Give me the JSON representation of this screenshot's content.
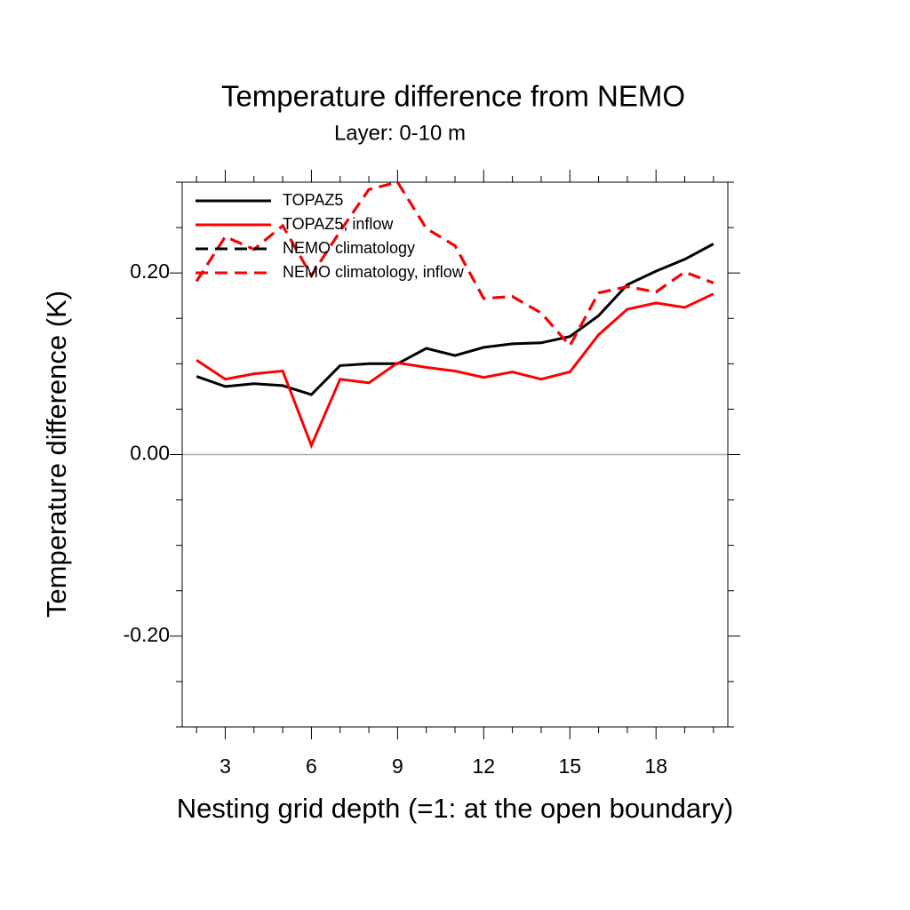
{
  "chart_data": {
    "type": "line",
    "title": "Temperature difference from NEMO",
    "subtitle": "Layer: 0-10 m",
    "x_label": "Nesting grid depth (=1: at the open boundary)",
    "y_label": "Temperature difference (K)",
    "x": [
      2,
      3,
      4,
      5,
      6,
      7,
      8,
      9,
      10,
      11,
      12,
      13,
      14,
      15,
      16,
      17,
      18,
      19,
      20
    ],
    "xlim": [
      1.5,
      20.5
    ],
    "xticks": [
      3,
      6,
      9,
      12,
      15,
      18
    ],
    "x_minor_ticks": [
      2,
      4,
      5,
      7,
      8,
      10,
      11,
      13,
      14,
      16,
      17,
      19,
      20
    ],
    "ylim": [
      -0.3,
      0.3
    ],
    "yticks": [
      {
        "value": -0.2,
        "label": "-0.20"
      },
      {
        "value": 0,
        "label": "0.00"
      },
      {
        "value": 0.2,
        "label": "0.20"
      }
    ],
    "y_minor_ticks": [
      -0.3,
      -0.25,
      -0.15,
      -0.1,
      -0.05,
      0.05,
      0.1,
      0.15,
      0.25,
      0.3
    ],
    "zero_line": true,
    "legend": "upper left",
    "series": [
      {
        "name": "TOPAZ5",
        "color": "#000000",
        "dash": false,
        "values": [
          0.086,
          0.075,
          0.078,
          0.076,
          0.066,
          0.098,
          0.1,
          0.1,
          0.117,
          0.109,
          0.118,
          0.122,
          0.123,
          0.13,
          0.153,
          0.187,
          0.202,
          0.215,
          0.232
        ]
      },
      {
        "name": "TOPAZ5, inflow",
        "color": "#ff0000",
        "dash": false,
        "values": [
          0.104,
          0.083,
          0.089,
          0.092,
          0.01,
          0.083,
          0.079,
          0.101,
          0.096,
          0.092,
          0.085,
          0.091,
          0.083,
          0.091,
          0.132,
          0.16,
          0.167,
          0.162,
          0.177
        ]
      },
      {
        "name": "NEMO climatology",
        "color": "#000000",
        "dash": true,
        "values": [
          0.191,
          0.24,
          0.226,
          0.252,
          0.197,
          0.246,
          0.292,
          0.3,
          0.249,
          0.23,
          0.172,
          0.174,
          0.156,
          0.12,
          0.178,
          0.185,
          0.179,
          0.201,
          0.189
        ]
      },
      {
        "name": "NEMO climatology, inflow",
        "color": "#ff0000",
        "dash": true,
        "values": [
          0.191,
          0.24,
          0.226,
          0.252,
          0.197,
          0.246,
          0.292,
          0.3,
          0.249,
          0.23,
          0.172,
          0.174,
          0.156,
          0.12,
          0.178,
          0.185,
          0.179,
          0.201,
          0.189
        ]
      }
    ]
  }
}
